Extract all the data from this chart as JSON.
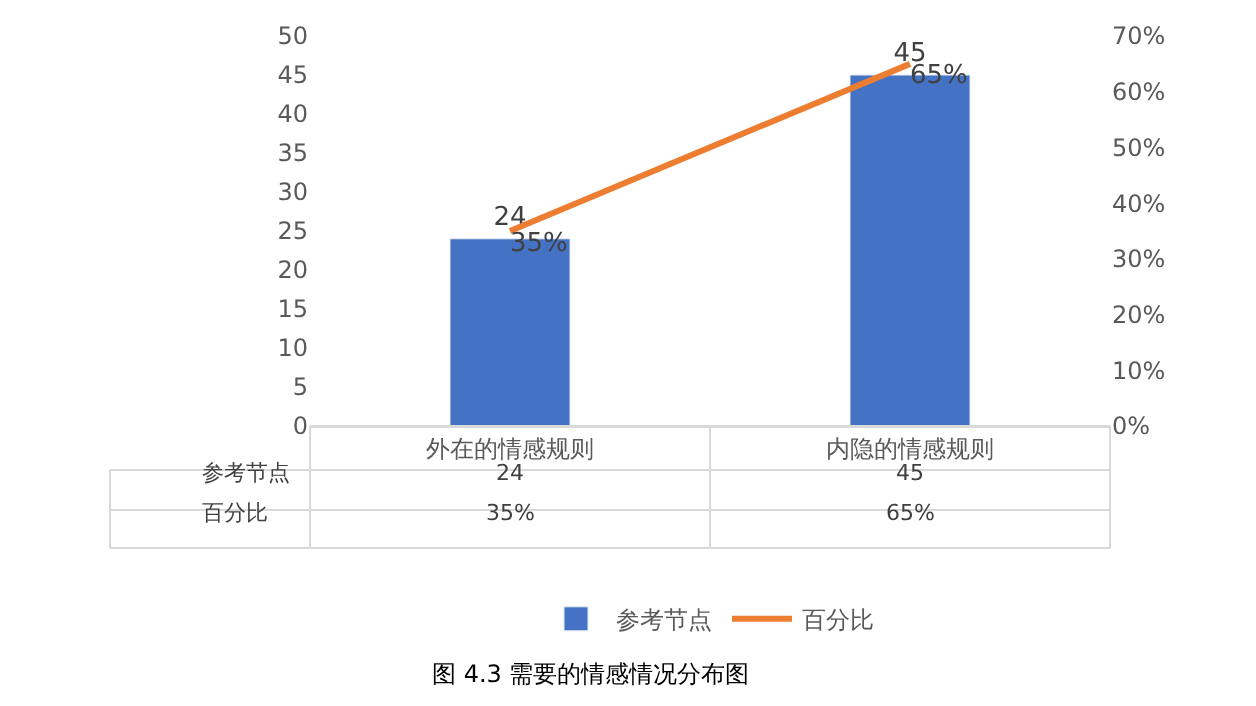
{
  "chart_data": {
    "type": "bar",
    "categories": [
      "外在的情感规则",
      "内隐的情感规则"
    ],
    "series": [
      {
        "name": "参考节点",
        "color": "#4472c4",
        "values": [
          24,
          45
        ],
        "value_labels": [
          "24",
          "45"
        ]
      },
      {
        "name": "百分比",
        "type": "line",
        "axis": "y2",
        "color": "#ed7d31",
        "values": [
          35,
          65
        ],
        "value_labels": [
          "35%",
          "65%"
        ],
        "marker": "none"
      }
    ],
    "ylim": [
      0,
      50
    ],
    "yticks": [
      0,
      5,
      10,
      15,
      20,
      25,
      30,
      35,
      40,
      45,
      50
    ],
    "y2lim": [
      0,
      70
    ],
    "y2ticks": [
      {
        "value": 0,
        "label": "0%"
      },
      {
        "value": 10,
        "label": "10%"
      },
      {
        "value": 20,
        "label": "20%"
      },
      {
        "value": 30,
        "label": "30%"
      },
      {
        "value": 40,
        "label": "40%"
      },
      {
        "value": 50,
        "label": "50%"
      },
      {
        "value": 60,
        "label": "60%"
      },
      {
        "value": 70,
        "label": "70%"
      }
    ],
    "legend": "bottom",
    "annotations": [
      "图 4.3 需要的情感情况分布图"
    ]
  }
}
